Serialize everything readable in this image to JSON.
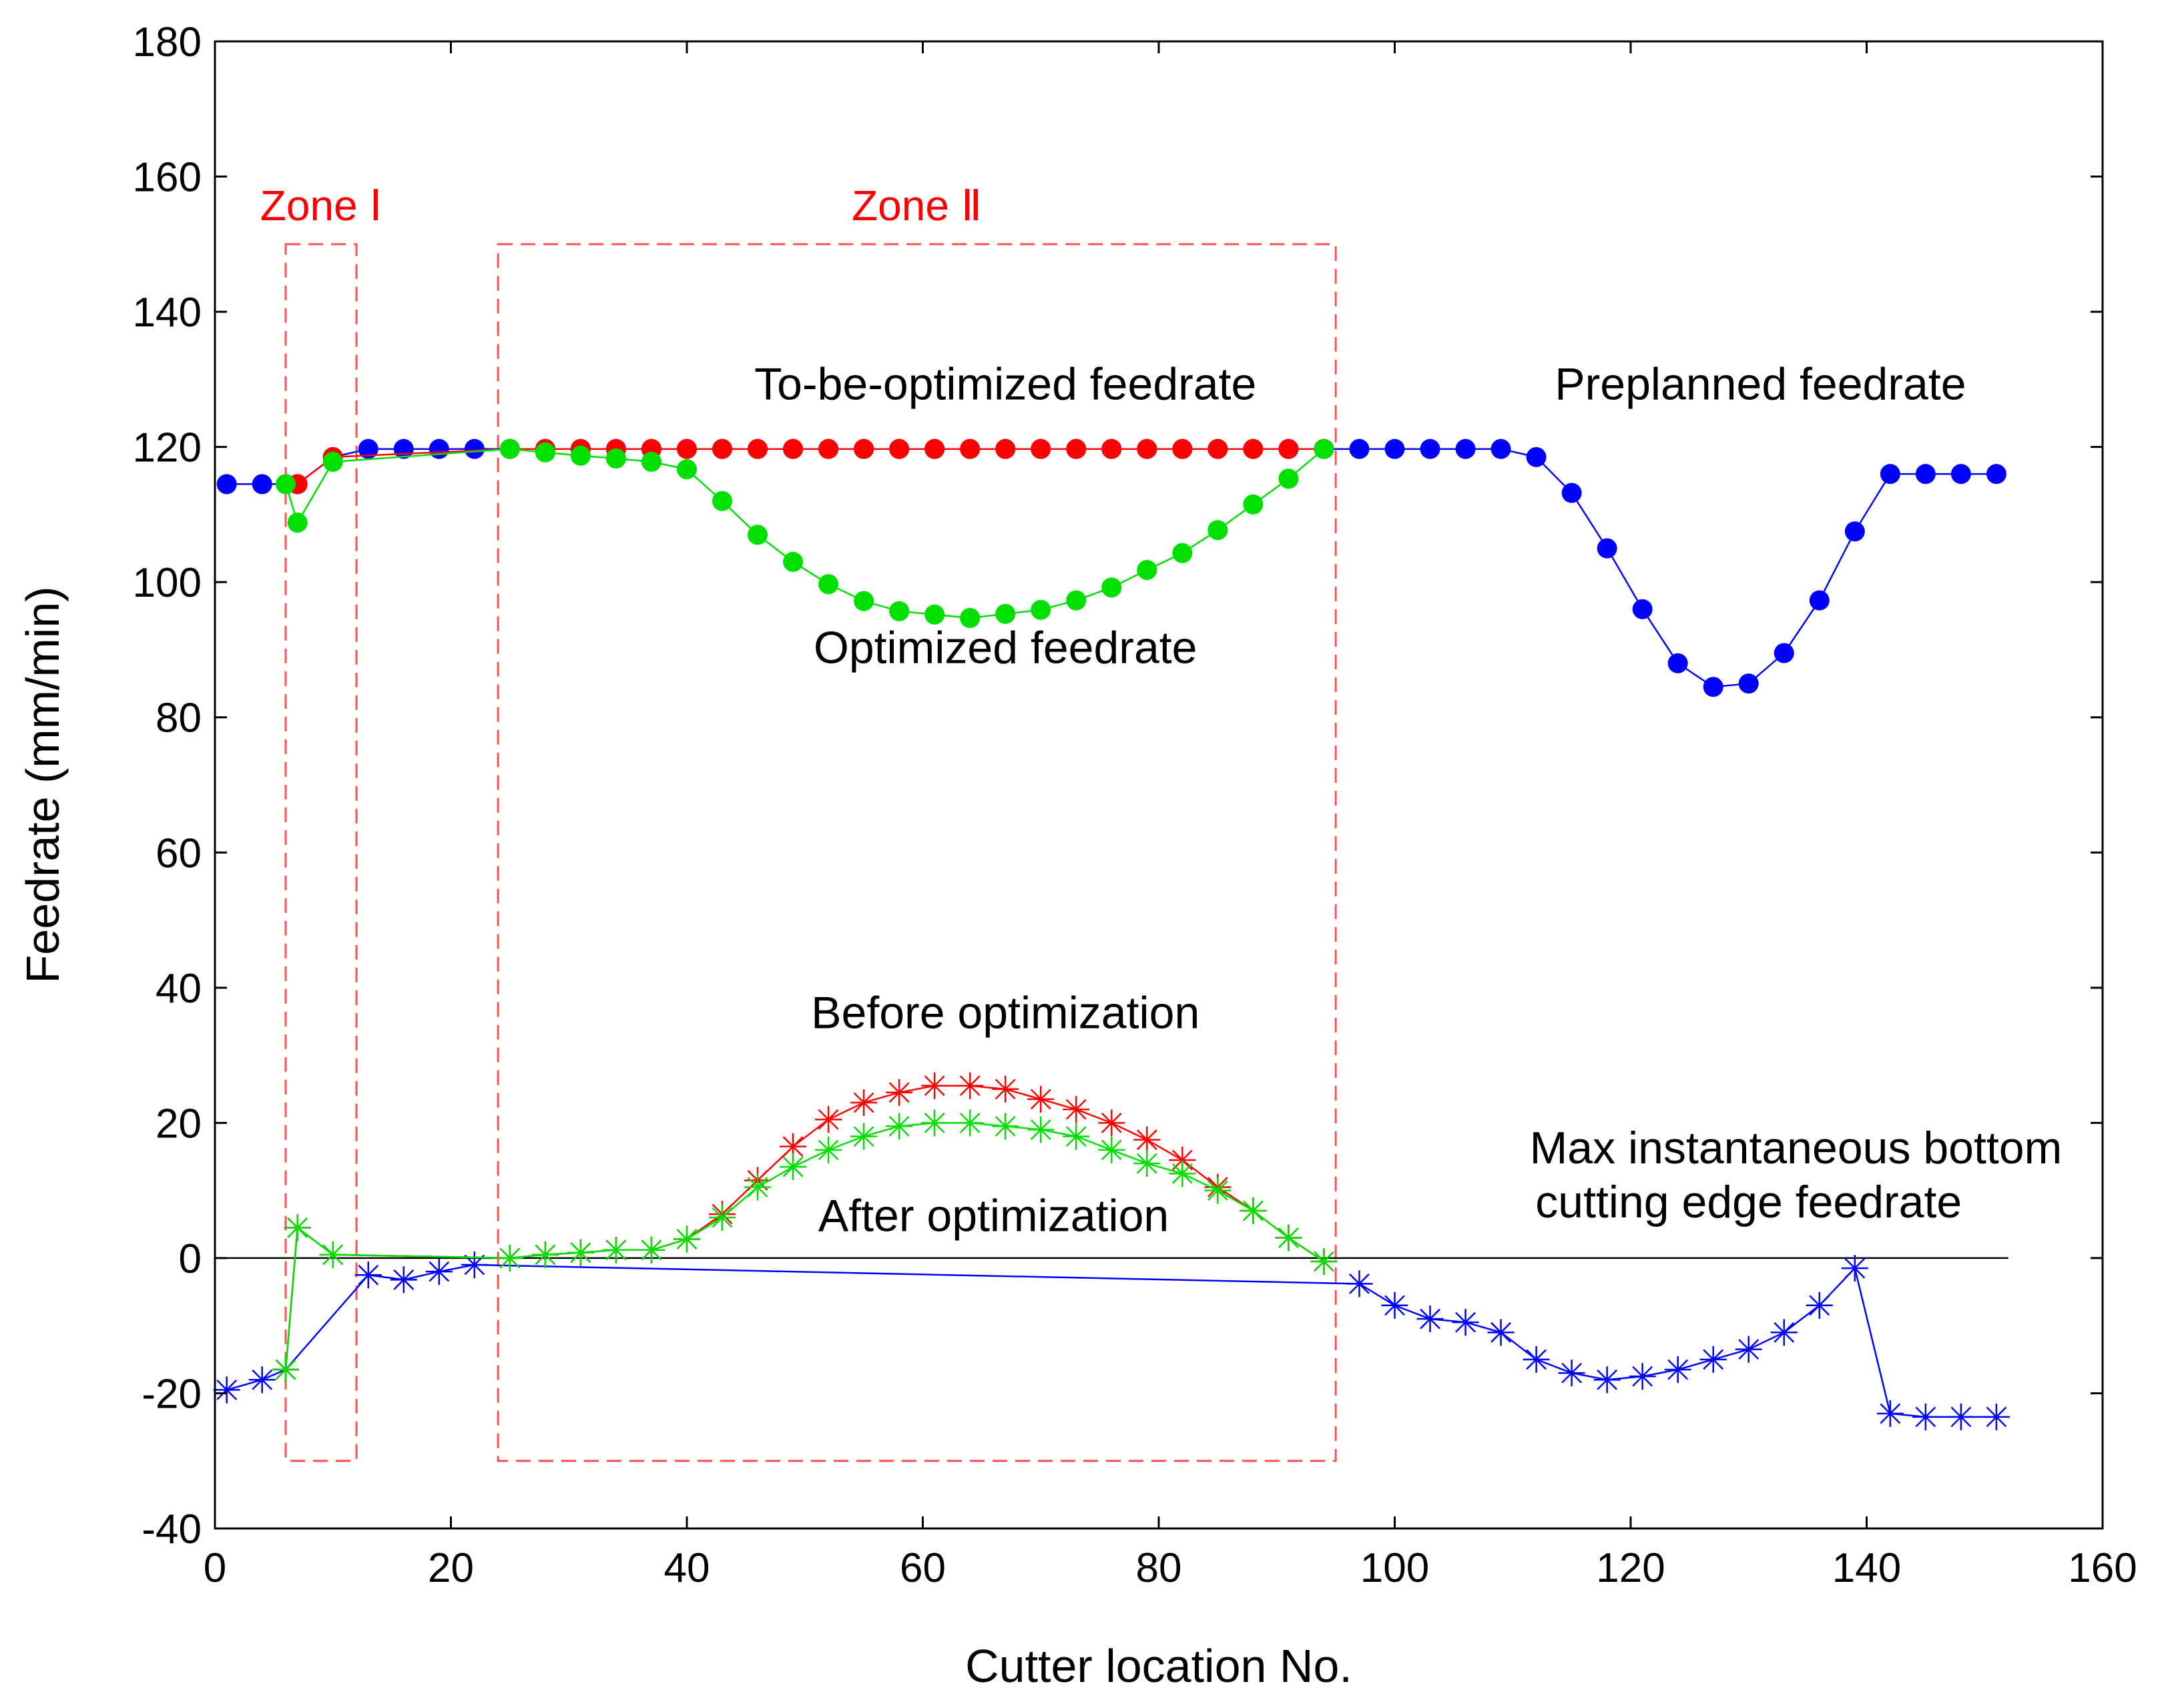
{
  "chart_data": {
    "type": "line",
    "title": "",
    "xlabel": "Cutter location No.",
    "ylabel": "Feedrate (mm/min)",
    "xlim": [
      0,
      160
    ],
    "ylim": [
      -40,
      180
    ],
    "xticks": [
      0,
      20,
      40,
      60,
      80,
      100,
      120,
      140,
      160
    ],
    "yticks": [
      -40,
      -20,
      0,
      20,
      40,
      60,
      80,
      100,
      120,
      140,
      160,
      180
    ],
    "grid": false,
    "zero_line": true,
    "colors": {
      "blue": "#0000ff",
      "red": "#ff0000",
      "green": "#00e000",
      "zone": "#ff5050"
    },
    "zones": [
      {
        "label": "Zone Ⅰ",
        "x0": 6,
        "x1": 12,
        "y0": -30,
        "y1": 150
      },
      {
        "label": "Zone Ⅱ",
        "x0": 24,
        "x1": 95,
        "y0": -30,
        "y1": 150
      }
    ],
    "annotations": [
      {
        "text": "To-be-optimized feedrate",
        "x": 67,
        "y": 127
      },
      {
        "text": "Preplanned feedrate",
        "x": 131,
        "y": 127
      },
      {
        "text": "Optimized feedrate",
        "x": 67,
        "y": 88
      },
      {
        "text": "Before optimization",
        "x": 67,
        "y": 34
      },
      {
        "text": "After optimization",
        "x": 66,
        "y": 4
      },
      {
        "text": "Max instantaneous bottom",
        "x": 134,
        "y": 14
      },
      {
        "text": "cutting edge feedrate",
        "x": 130,
        "y": 6
      }
    ],
    "series": [
      {
        "name": "Preplanned feedrate",
        "color": "#0000ff",
        "marker": "dot",
        "x": [
          1,
          4,
          7,
          10,
          13,
          16,
          19,
          22,
          25,
          28,
          31,
          34,
          37,
          40,
          43,
          46,
          49,
          52,
          55,
          58,
          61,
          64,
          67,
          70,
          73,
          76,
          79,
          82,
          85,
          88,
          91,
          94,
          97,
          100,
          103,
          106,
          109,
          112,
          115,
          118,
          121,
          124,
          127,
          130,
          133,
          136,
          139,
          142,
          145,
          148,
          151
        ],
        "y": [
          114.5,
          114.5,
          114.5,
          118.5,
          119.7,
          119.7,
          119.7,
          119.7,
          119.7,
          119.7,
          119.7,
          119.7,
          119.7,
          119.7,
          119.7,
          119.7,
          119.7,
          119.7,
          119.7,
          119.7,
          119.7,
          119.7,
          119.7,
          119.7,
          119.7,
          119.7,
          119.7,
          119.7,
          119.7,
          119.7,
          119.7,
          119.7,
          119.7,
          119.7,
          119.7,
          119.7,
          119.7,
          118.5,
          113.2,
          105,
          96,
          88,
          84.5,
          85,
          89.5,
          97.3,
          107.5,
          116,
          116,
          116,
          116
        ]
      },
      {
        "name": "To-be-optimized feedrate",
        "color": "#ff0000",
        "marker": "dot",
        "x": [
          7,
          10,
          25,
          28,
          31,
          34,
          37,
          40,
          43,
          46,
          49,
          52,
          55,
          58,
          61,
          64,
          67,
          70,
          73,
          76,
          79,
          82,
          85,
          88,
          91,
          94
        ],
        "y": [
          114.5,
          118.5,
          119.7,
          119.7,
          119.7,
          119.7,
          119.7,
          119.7,
          119.7,
          119.7,
          119.7,
          119.7,
          119.7,
          119.7,
          119.7,
          119.7,
          119.7,
          119.7,
          119.7,
          119.7,
          119.7,
          119.7,
          119.7,
          119.7,
          119.7,
          119.7
        ]
      },
      {
        "name": "Optimized feedrate",
        "color": "#00e000",
        "marker": "dot",
        "x": [
          6,
          7,
          10,
          25,
          28,
          31,
          34,
          37,
          40,
          43,
          46,
          49,
          52,
          55,
          58,
          61,
          64,
          67,
          70,
          73,
          76,
          79,
          82,
          85,
          88,
          91,
          94
        ],
        "y": [
          114.5,
          108.8,
          117.8,
          119.7,
          119.2,
          118.7,
          118.3,
          117.8,
          116.7,
          112,
          107,
          103,
          99.7,
          97.2,
          95.7,
          95.2,
          94.7,
          95.3,
          95.9,
          97.3,
          99.2,
          101.8,
          104.3,
          107.7,
          111.5,
          115.3,
          119.7
        ]
      },
      {
        "name": "Max instantaneous bottom cutting edge feedrate",
        "color": "#0000ff",
        "marker": "star",
        "x": [
          1,
          4,
          6,
          13,
          16,
          19,
          22,
          97,
          100,
          103,
          106,
          109,
          112,
          115,
          118,
          121,
          124,
          127,
          130,
          133,
          136,
          139,
          142,
          145,
          148,
          151
        ],
        "y": [
          -19.5,
          -18,
          -16.5,
          -2.5,
          -3.2,
          -2,
          -1,
          -3.8,
          -7,
          -9,
          -9.5,
          -11,
          -15,
          -17,
          -18,
          -17.5,
          -16.5,
          -15,
          -13.5,
          -11,
          -7,
          -1.5,
          -23,
          -23.5,
          -23.5,
          -23.5
        ]
      },
      {
        "name": "Before optimization",
        "color": "#ff0000",
        "marker": "star",
        "x": [
          6,
          7,
          10,
          25,
          28,
          31,
          34,
          37,
          40,
          43,
          46,
          49,
          52,
          55,
          58,
          61,
          64,
          67,
          70,
          73,
          76,
          79,
          82,
          85,
          88,
          91,
          94
        ],
        "y": [
          -16.5,
          4.5,
          0.5,
          0,
          0.5,
          0.8,
          1.2,
          1.2,
          2.8,
          6.5,
          11.5,
          16.5,
          20.5,
          23,
          24.5,
          25.5,
          25.5,
          25,
          23.5,
          22,
          20,
          17.5,
          14.5,
          10.5,
          7,
          3,
          -0.5
        ]
      },
      {
        "name": "After optimization",
        "color": "#00e000",
        "marker": "star",
        "x": [
          6,
          7,
          10,
          25,
          28,
          31,
          34,
          37,
          40,
          43,
          46,
          49,
          52,
          55,
          58,
          61,
          64,
          67,
          70,
          73,
          76,
          79,
          82,
          85,
          88,
          91,
          94
        ],
        "y": [
          -16.5,
          4.5,
          0.5,
          0,
          0.5,
          0.8,
          1.2,
          1.2,
          2.8,
          6,
          10.5,
          13.5,
          16,
          18,
          19.5,
          20,
          20,
          19.5,
          19,
          18,
          16,
          14,
          12.5,
          10,
          7,
          3,
          -0.5
        ]
      }
    ]
  }
}
